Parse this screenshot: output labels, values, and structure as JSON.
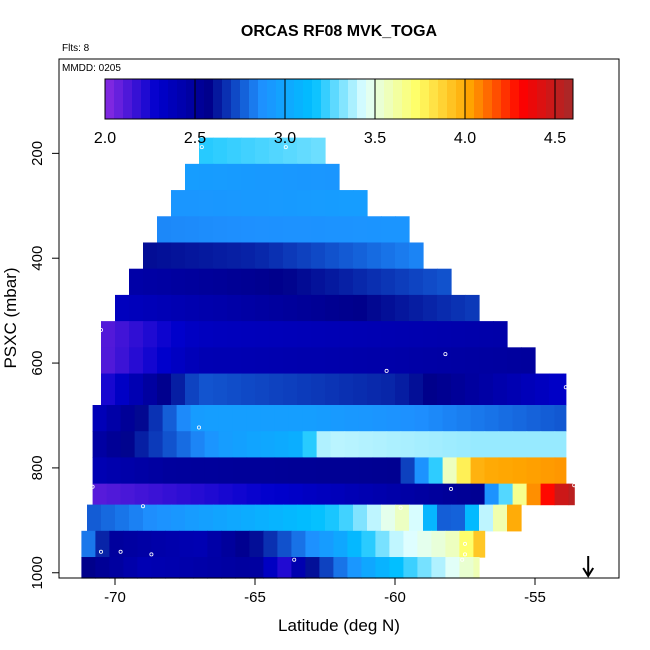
{
  "chart_data": {
    "type": "heatmap",
    "title": "ORCAS RF08 MVK_TOGA",
    "annotations": {
      "flights": "Flts: 8",
      "date": "MMDD: 0205"
    },
    "xlabel": "Latitude (deg N)",
    "ylabel": "PSXC (mbar)",
    "xlim": [
      -72,
      -52
    ],
    "ylim": [
      1010,
      20
    ],
    "y_reversed": true,
    "x_ticks": [
      -70,
      -65,
      -60,
      -55
    ],
    "x_tick_labels": [
      "-70",
      "-65",
      "-60",
      "-55"
    ],
    "y_ticks": [
      200,
      400,
      600,
      800,
      1000
    ],
    "y_tick_labels": [
      "200",
      "400",
      "600",
      "800",
      "1000"
    ],
    "colorbar": {
      "range": [
        2.0,
        4.6
      ],
      "ticks": [
        2.0,
        2.5,
        3.0,
        3.5,
        4.0,
        4.5
      ],
      "tick_labels": [
        "2.0",
        "2.5",
        "3.0",
        "3.5",
        "4.0",
        "4.5"
      ],
      "colors": [
        "#8a2be2",
        "#0000cd",
        "#00008b",
        "#1e90ff",
        "#00bfff",
        "#e0ffff",
        "#ffff66",
        "#ffa500",
        "#ff0000",
        "#a52a2a"
      ]
    },
    "bands": [
      {
        "p_top": 170,
        "p_bot": 220,
        "lat_min": -67.0,
        "lat_max": -62.5,
        "stops": [
          [
            -67.0,
            3.2
          ],
          [
            -62.5,
            3.3
          ]
        ]
      },
      {
        "p_top": 220,
        "p_bot": 270,
        "lat_min": -67.5,
        "lat_max": -62.0,
        "stops": [
          [
            -67.5,
            2.95
          ],
          [
            -62.0,
            2.9
          ]
        ]
      },
      {
        "p_top": 270,
        "p_bot": 320,
        "lat_min": -68.0,
        "lat_max": -61.0,
        "stops": [
          [
            -68.0,
            2.9
          ],
          [
            -61.0,
            2.95
          ]
        ]
      },
      {
        "p_top": 320,
        "p_bot": 370,
        "lat_min": -68.5,
        "lat_max": -59.5,
        "stops": [
          [
            -68.5,
            2.85
          ],
          [
            -59.5,
            2.9
          ]
        ]
      },
      {
        "p_top": 370,
        "p_bot": 420,
        "lat_min": -69.0,
        "lat_max": -59.0,
        "stops": [
          [
            -69.0,
            2.6
          ],
          [
            -65.0,
            2.65
          ],
          [
            -59.0,
            2.85
          ]
        ]
      },
      {
        "p_top": 420,
        "p_bot": 470,
        "lat_min": -69.5,
        "lat_max": -58.0,
        "stops": [
          [
            -69.5,
            2.45
          ],
          [
            -65.0,
            2.55
          ],
          [
            -58.0,
            2.75
          ]
        ]
      },
      {
        "p_top": 470,
        "p_bot": 520,
        "lat_min": -70.0,
        "lat_max": -57.0,
        "stops": [
          [
            -70.0,
            2.35
          ],
          [
            -64.0,
            2.5
          ],
          [
            -57.0,
            2.7
          ]
        ]
      },
      {
        "p_top": 520,
        "p_bot": 570,
        "lat_min": -70.5,
        "lat_max": -56.0,
        "stops": [
          [
            -70.5,
            2.1
          ],
          [
            -67.0,
            2.35
          ],
          [
            -56.0,
            2.45
          ]
        ]
      },
      {
        "p_top": 570,
        "p_bot": 620,
        "lat_min": -70.5,
        "lat_max": -55.0,
        "stops": [
          [
            -70.5,
            2.1
          ],
          [
            -67.0,
            2.4
          ],
          [
            -60.0,
            2.45
          ],
          [
            -55.0,
            2.5
          ]
        ]
      },
      {
        "p_top": 620,
        "p_bot": 680,
        "lat_min": -70.5,
        "lat_max": -53.9,
        "stops": [
          [
            -70.5,
            2.2
          ],
          [
            -69.0,
            2.45
          ],
          [
            -67.0,
            2.75
          ],
          [
            -60.0,
            2.65
          ],
          [
            -53.9,
            2.3
          ]
        ]
      },
      {
        "p_top": 680,
        "p_bot": 730,
        "lat_min": -70.8,
        "lat_max": -53.9,
        "stops": [
          [
            -70.8,
            2.35
          ],
          [
            -69.0,
            2.6
          ],
          [
            -67.0,
            2.95
          ],
          [
            -63.0,
            2.95
          ],
          [
            -53.9,
            2.75
          ]
        ]
      },
      {
        "p_top": 730,
        "p_bot": 780,
        "lat_min": -70.8,
        "lat_max": -53.9,
        "stops": [
          [
            -70.8,
            2.45
          ],
          [
            -68.5,
            2.7
          ],
          [
            -66.0,
            2.95
          ],
          [
            -63.5,
            3.05
          ],
          [
            -62.5,
            3.4
          ],
          [
            -57.0,
            3.35
          ],
          [
            -53.9,
            3.35
          ]
        ]
      },
      {
        "p_top": 780,
        "p_bot": 830,
        "lat_min": -70.8,
        "lat_max": -53.9,
        "stops": [
          [
            -70.8,
            2.4
          ],
          [
            -68.0,
            2.5
          ],
          [
            -60.0,
            2.55
          ],
          [
            -59.0,
            2.9
          ],
          [
            -58.0,
            3.6
          ],
          [
            -57.0,
            4.0
          ],
          [
            -53.9,
            4.05
          ]
        ]
      },
      {
        "p_top": 830,
        "p_bot": 870,
        "lat_min": -70.8,
        "lat_max": -53.6,
        "stops": [
          [
            -70.8,
            2.1
          ],
          [
            -64.0,
            2.3
          ],
          [
            -60.0,
            2.45
          ],
          [
            -57.0,
            2.55
          ],
          [
            -56.0,
            3.3
          ],
          [
            -55.0,
            4.1
          ],
          [
            -54.2,
            4.45
          ],
          [
            -53.6,
            4.55
          ]
        ]
      },
      {
        "p_top": 870,
        "p_bot": 920,
        "lat_min": -71.0,
        "lat_max": -55.5,
        "stops": [
          [
            -71.0,
            2.75
          ],
          [
            -69.0,
            2.85
          ],
          [
            -65.0,
            3.05
          ],
          [
            -62.0,
            3.2
          ],
          [
            -59.5,
            3.6
          ],
          [
            -58.0,
            2.6
          ],
          [
            -57.0,
            3.3
          ],
          [
            -56.0,
            3.7
          ],
          [
            -55.5,
            4.3
          ]
        ]
      },
      {
        "p_top": 920,
        "p_bot": 970,
        "lat_min": -71.2,
        "lat_max": -56.8,
        "stops": [
          [
            -71.2,
            2.9
          ],
          [
            -70.0,
            2.5
          ],
          [
            -67.0,
            2.4
          ],
          [
            -65.0,
            2.6
          ],
          [
            -62.0,
            3.0
          ],
          [
            -60.0,
            3.4
          ],
          [
            -58.0,
            3.55
          ],
          [
            -57.5,
            3.7
          ],
          [
            -56.8,
            4.0
          ]
        ]
      },
      {
        "p_top": 970,
        "p_bot": 1010,
        "lat_min": -71.2,
        "lat_max": -57.0,
        "stops": [
          [
            -71.2,
            2.6
          ],
          [
            -69.0,
            2.4
          ],
          [
            -65.0,
            2.5
          ],
          [
            -64.0,
            2.2
          ],
          [
            -63.0,
            2.6
          ],
          [
            -61.0,
            3.0
          ],
          [
            -59.0,
            3.3
          ],
          [
            -57.0,
            3.6
          ]
        ]
      }
    ],
    "sample_points": [
      {
        "lat": -66.9,
        "p": 188
      },
      {
        "lat": -63.9,
        "p": 188
      },
      {
        "lat": -70.5,
        "p": 537
      },
      {
        "lat": -58.2,
        "p": 583
      },
      {
        "lat": -60.3,
        "p": 615
      },
      {
        "lat": -53.9,
        "p": 646
      },
      {
        "lat": -67.0,
        "p": 723
      },
      {
        "lat": -70.8,
        "p": 836
      },
      {
        "lat": -58.0,
        "p": 840
      },
      {
        "lat": -53.6,
        "p": 833
      },
      {
        "lat": -69.0,
        "p": 873
      },
      {
        "lat": -59.8,
        "p": 876
      },
      {
        "lat": -70.5,
        "p": 960
      },
      {
        "lat": -69.8,
        "p": 960
      },
      {
        "lat": -68.7,
        "p": 965
      },
      {
        "lat": -57.5,
        "p": 965
      },
      {
        "lat": -63.6,
        "p": 975
      },
      {
        "lat": -57.6,
        "p": 975
      },
      {
        "lat": -57.5,
        "p": 945
      }
    ],
    "arrow_marker": {
      "lat": -53.1,
      "direction": "down"
    }
  }
}
